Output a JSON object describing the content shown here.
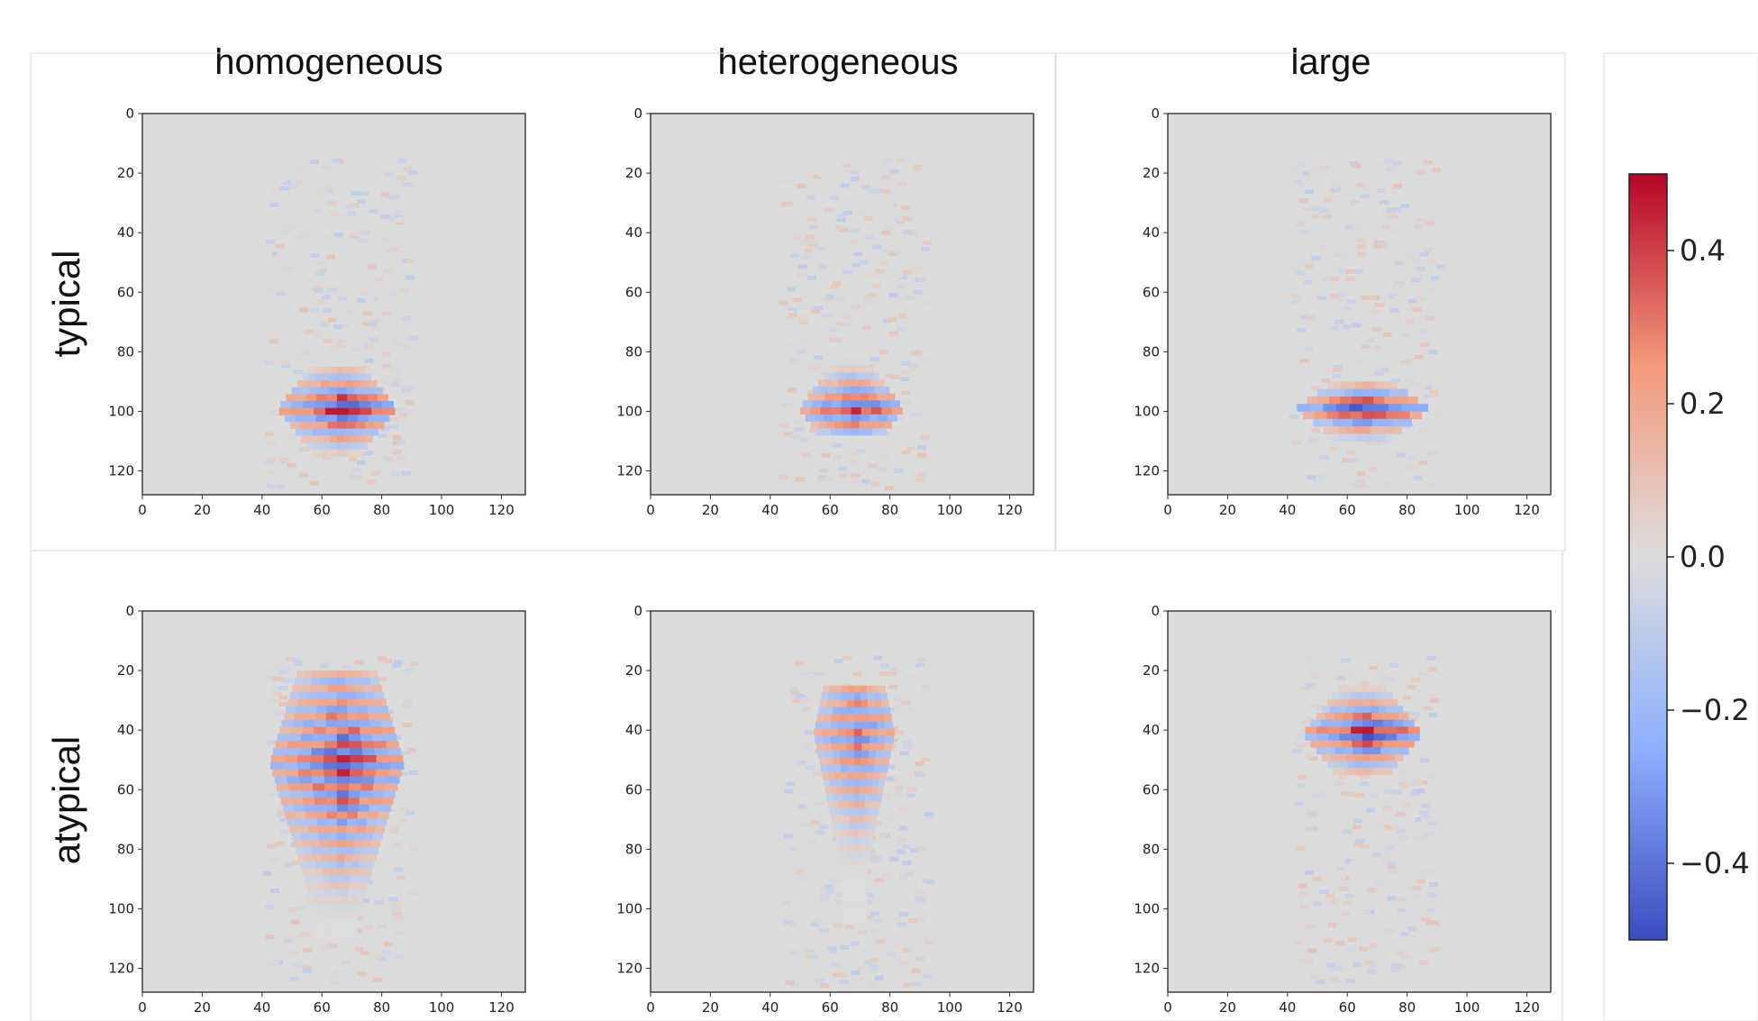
{
  "chart_data": {
    "type": "heatmap",
    "title": "",
    "column_titles": [
      "homogeneous",
      "heterogeneous",
      "large"
    ],
    "row_labels": [
      "typical",
      "atypical"
    ],
    "axis": {
      "x_ticks": [
        "0",
        "20",
        "40",
        "60",
        "80",
        "100",
        "120"
      ],
      "y_ticks": [
        "0",
        "20",
        "40",
        "60",
        "80",
        "100",
        "120"
      ],
      "x_range": [
        0,
        128
      ],
      "y_range": [
        0,
        128
      ],
      "y_inverted": true,
      "grid": false
    },
    "colorbar": {
      "colormap": "coolwarm",
      "range": [
        -0.5,
        0.5
      ],
      "ticks": [
        "0.4",
        "0.2",
        "0.0",
        "−0.2",
        "−0.4"
      ],
      "tick_values": [
        0.4,
        0.2,
        0.0,
        -0.2,
        -0.4
      ],
      "legend_placement": "right"
    },
    "panels": [
      {
        "row": "typical",
        "column": "homogeneous",
        "description": "strong horizontal red/blue stripes centered near x=65,y=98; faint vertical streak x=55-80,y=20-95",
        "peak_abs": 0.5,
        "center": [
          65,
          98
        ],
        "extent": [
          45,
          85,
          85,
          115
        ]
      },
      {
        "row": "typical",
        "column": "heterogeneous",
        "description": "narrow stripes near x=67,y=98; faint band near y=30-50",
        "peak_abs": 0.45,
        "center": [
          67,
          98
        ],
        "extent": [
          55,
          80,
          90,
          108
        ]
      },
      {
        "row": "typical",
        "column": "large",
        "description": "wide strong stripes centered x=65,y=98",
        "peak_abs": 0.5,
        "center": [
          65,
          98
        ],
        "extent": [
          40,
          90,
          85,
          110
        ]
      },
      {
        "row": "atypical",
        "column": "homogeneous",
        "description": "diffuse vertical structure x=50-85, y=25-110",
        "peak_abs": 0.45,
        "center": [
          65,
          50
        ],
        "extent": [
          45,
          20,
          90,
          110
        ]
      },
      {
        "row": "atypical",
        "column": "heterogeneous",
        "description": "stripes near y=30-50 and y=95-103 at x=60-80",
        "peak_abs": 0.35,
        "center": [
          68,
          40
        ],
        "extent": [
          55,
          25,
          82,
          105
        ]
      },
      {
        "row": "atypical",
        "column": "large",
        "description": "strong stripes near x=65,y=40",
        "peak_abs": 0.5,
        "center": [
          65,
          40
        ],
        "extent": [
          45,
          25,
          85,
          55
        ]
      }
    ]
  }
}
